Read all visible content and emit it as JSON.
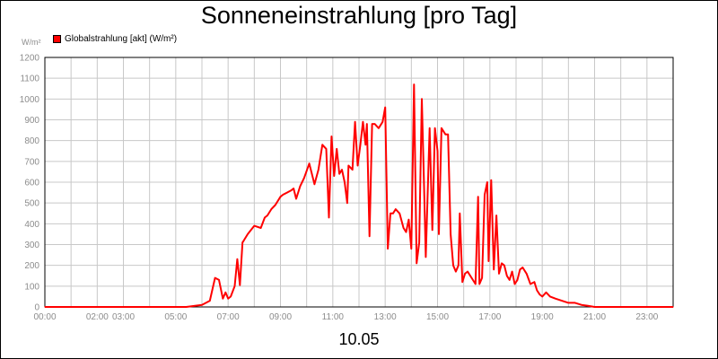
{
  "chart_data": {
    "type": "line",
    "title": "Sonneneinstrahlung [pro Tag]",
    "ylabel": "W/m²",
    "xlabel": "10.05",
    "ylim": [
      0,
      1200
    ],
    "xlim_hours": [
      0,
      24
    ],
    "grid": true,
    "legend_position": "top-left",
    "y_ticks": [
      0,
      100,
      200,
      300,
      400,
      500,
      600,
      700,
      800,
      900,
      1000,
      1100,
      1200
    ],
    "x_ticks": [
      {
        "hour": 0,
        "label": "00:00"
      },
      {
        "hour": 2,
        "label": "02:00"
      },
      {
        "hour": 3,
        "label": "03:00"
      },
      {
        "hour": 5,
        "label": "05:00"
      },
      {
        "hour": 7,
        "label": "07:00"
      },
      {
        "hour": 9,
        "label": "09:00"
      },
      {
        "hour": 11,
        "label": "11:00"
      },
      {
        "hour": 13,
        "label": "13:00"
      },
      {
        "hour": 15,
        "label": "15:00"
      },
      {
        "hour": 17,
        "label": "17:00"
      },
      {
        "hour": 19,
        "label": "19:00"
      },
      {
        "hour": 21,
        "label": "21:00"
      },
      {
        "hour": 23,
        "label": "23:00"
      }
    ],
    "series": [
      {
        "name": "Globalstrahlung [akt] (W/m²)",
        "color": "#ff0000",
        "x": [
          0,
          5.4,
          6.0,
          6.3,
          6.5,
          6.65,
          6.8,
          6.9,
          7.0,
          7.1,
          7.25,
          7.35,
          7.45,
          7.55,
          7.6,
          7.75,
          8.0,
          8.25,
          8.4,
          8.5,
          8.65,
          8.8,
          9.0,
          9.1,
          9.25,
          9.4,
          9.5,
          9.6,
          9.75,
          9.9,
          10.1,
          10.3,
          10.45,
          10.6,
          10.75,
          10.85,
          10.95,
          11.05,
          11.15,
          11.25,
          11.35,
          11.45,
          11.55,
          11.6,
          11.75,
          11.85,
          11.95,
          12.05,
          12.15,
          12.25,
          12.3,
          12.4,
          12.5,
          12.6,
          12.75,
          12.9,
          13.0,
          13.1,
          13.2,
          13.3,
          13.4,
          13.55,
          13.7,
          13.8,
          13.9,
          14.0,
          14.1,
          14.2,
          14.3,
          14.4,
          14.5,
          14.55,
          14.7,
          14.8,
          14.9,
          15.0,
          15.05,
          15.15,
          15.3,
          15.4,
          15.5,
          15.6,
          15.7,
          15.8,
          15.85,
          15.95,
          16.05,
          16.15,
          16.25,
          16.35,
          16.45,
          16.55,
          16.6,
          16.7,
          16.8,
          16.9,
          16.95,
          17.05,
          17.15,
          17.25,
          17.35,
          17.45,
          17.55,
          17.65,
          17.75,
          17.85,
          17.95,
          18.05,
          18.15,
          18.25,
          18.4,
          18.55,
          18.7,
          18.8,
          18.9,
          19.0,
          19.15,
          19.3,
          19.5,
          19.75,
          20.0,
          20.25,
          20.5,
          20.75,
          21.0,
          21.25,
          21.5,
          22.0,
          23.0,
          24.0
        ],
        "values": [
          0,
          0,
          10,
          30,
          140,
          130,
          40,
          70,
          40,
          50,
          100,
          230,
          105,
          310,
          320,
          350,
          390,
          380,
          430,
          440,
          470,
          490,
          530,
          540,
          550,
          560,
          570,
          520,
          580,
          620,
          690,
          590,
          660,
          780,
          760,
          430,
          820,
          630,
          760,
          640,
          660,
          600,
          500,
          680,
          660,
          890,
          680,
          780,
          890,
          780,
          880,
          340,
          880,
          880,
          860,
          890,
          960,
          280,
          450,
          450,
          470,
          450,
          380,
          360,
          420,
          280,
          1070,
          210,
          310,
          1000,
          510,
          240,
          860,
          370,
          860,
          750,
          350,
          860,
          830,
          830,
          350,
          200,
          170,
          200,
          450,
          120,
          160,
          170,
          150,
          130,
          110,
          530,
          110,
          140,
          540,
          600,
          220,
          610,
          180,
          440,
          160,
          210,
          200,
          150,
          130,
          170,
          110,
          130,
          180,
          190,
          160,
          110,
          120,
          80,
          60,
          50,
          70,
          50,
          40,
          30,
          20,
          20,
          10,
          5,
          0,
          0,
          0,
          0,
          0,
          0
        ]
      }
    ]
  }
}
